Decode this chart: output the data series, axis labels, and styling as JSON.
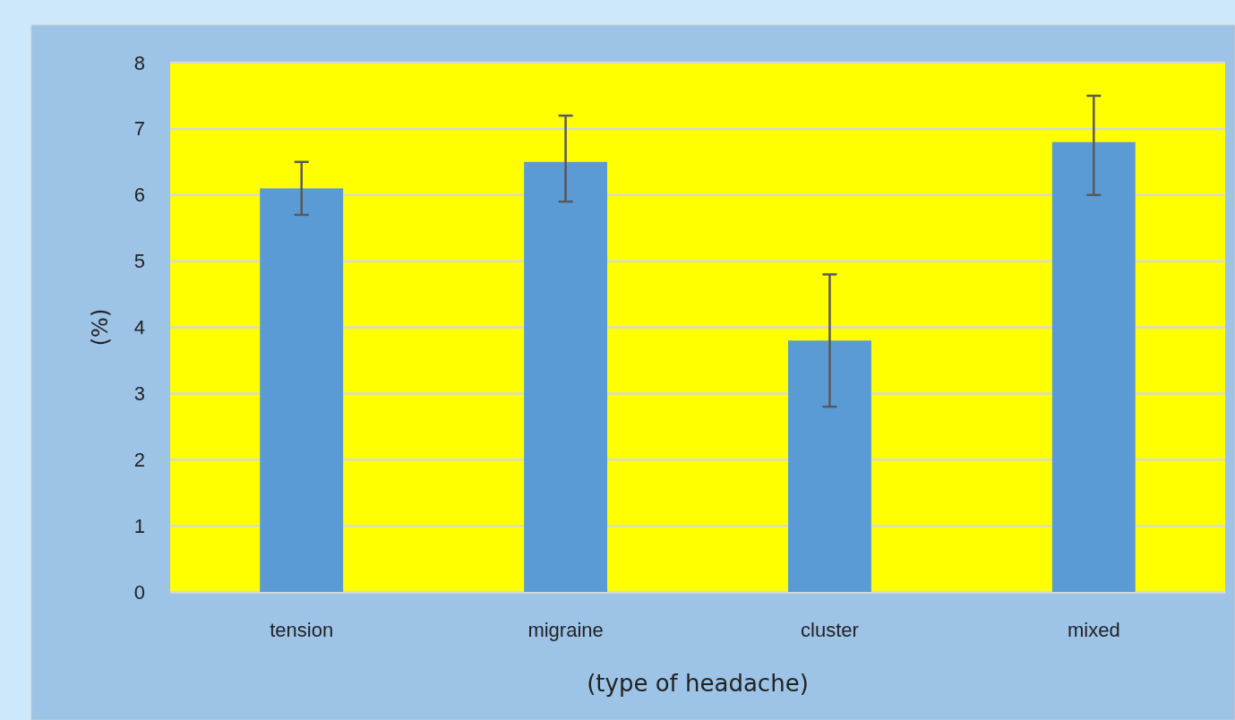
{
  "chart_data": {
    "type": "bar",
    "xlabel": "(type of headache)",
    "ylabel": "(%)",
    "categories": [
      "tension",
      "migraine",
      "cluster",
      "mixed"
    ],
    "values": [
      6.1,
      6.5,
      3.8,
      6.8
    ],
    "errors": [
      [
        5.7,
        6.5
      ],
      [
        5.9,
        7.2
      ],
      [
        2.8,
        4.8
      ],
      [
        6.0,
        7.5
      ]
    ],
    "color": "#5b9bd5",
    "ylim": [
      0,
      8
    ],
    "yticks": [
      0,
      1,
      2,
      3,
      4,
      5,
      6,
      7,
      8
    ],
    "grid": "y"
  }
}
